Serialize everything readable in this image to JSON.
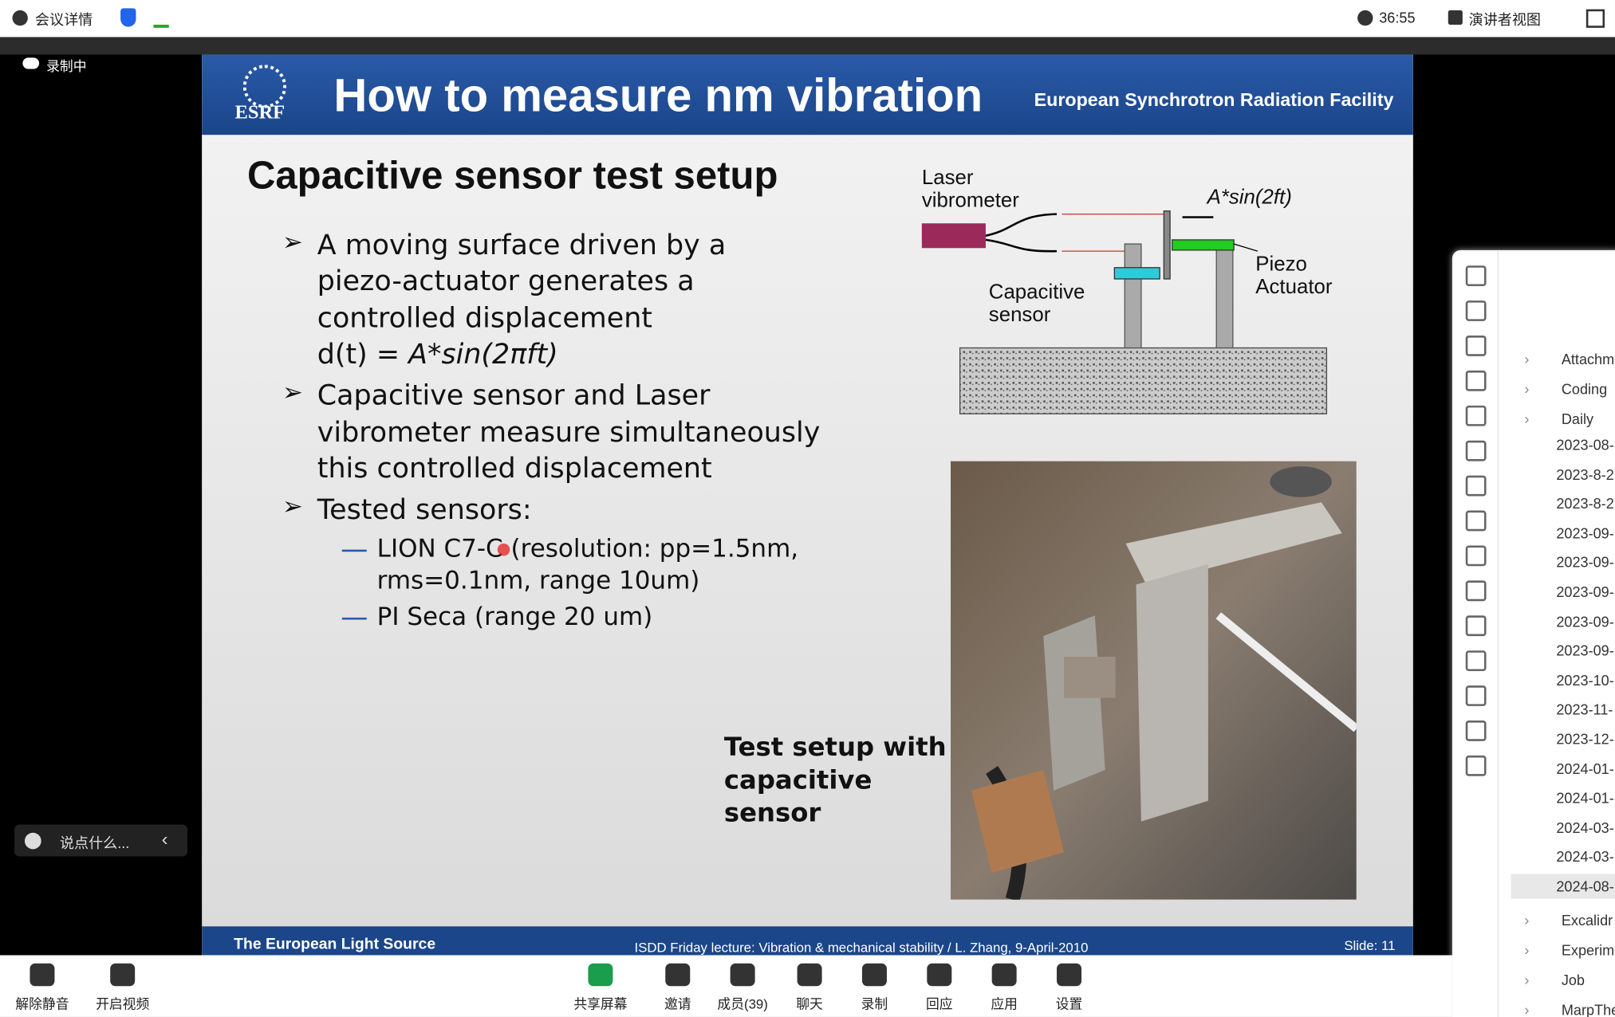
{
  "topbar": {
    "meeting": "会议详情",
    "time": "36:55",
    "view": "演讲者视图"
  },
  "recording": "录制中",
  "chat_placeholder": "说点什么...",
  "toolbar": [
    "解除静音",
    "开启视频",
    "共享屏幕",
    "邀请",
    "成员(39)",
    "聊天",
    "录制",
    "回应",
    "应用",
    "设置"
  ],
  "slide": {
    "logo": "ESRF",
    "title": "How to measure nm vibration",
    "org": "European Synchrotron Radiation Facility",
    "heading": "Capacitive sensor test setup",
    "bullets": [
      {
        "lines": [
          "A moving surface driven by a",
          "piezo-actuator generates a",
          "controlled displacement"
        ],
        "formula_prefix": "d(t) = ",
        "formula": "A*sin(2πft)"
      },
      {
        "lines": [
          "Capacitive sensor and Laser",
          "vibrometer measure simultaneously",
          "this controlled displacement"
        ]
      },
      {
        "lines": [
          "Tested sensors:"
        ]
      }
    ],
    "sub_bullets": [
      {
        "lines": [
          "LION C7-C (resolution: pp=1.5nm,",
          "rms=0.1nm, range 10um)"
        ]
      },
      {
        "lines": [
          "PI Seca (range 20 um)"
        ]
      }
    ],
    "diagram": {
      "laser": [
        "Laser",
        "vibrometer"
      ],
      "signal": "A*sin(2ft)",
      "capacitive": [
        "Capacitive",
        "sensor"
      ],
      "piezo": [
        "Piezo",
        "Actuator"
      ]
    },
    "caption": [
      "Test setup with",
      "capacitive",
      "sensor"
    ],
    "footer_left": "The European Light Source",
    "footer_center": "ISDD Friday lecture: Vibration & mechanical stability / L. Zhang,  9-April-2010",
    "footer_right": "Slide: 11"
  },
  "sidebar": {
    "folders_top": [
      "Attachm",
      "Coding",
      "Daily"
    ],
    "dates": [
      "2023-08-",
      "2023-8-2",
      "2023-8-2",
      "2023-09-",
      "2023-09-",
      "2023-09-",
      "2023-09-",
      "2023-09-",
      "2023-10-",
      "2023-11-",
      "2023-12-",
      "2024-01-",
      "2024-01-",
      "2024-03-",
      "2024-03-",
      "2024-08-"
    ],
    "folders_bottom": [
      "Excalidr",
      "Experime",
      "Job",
      "MarpThe"
    ]
  }
}
